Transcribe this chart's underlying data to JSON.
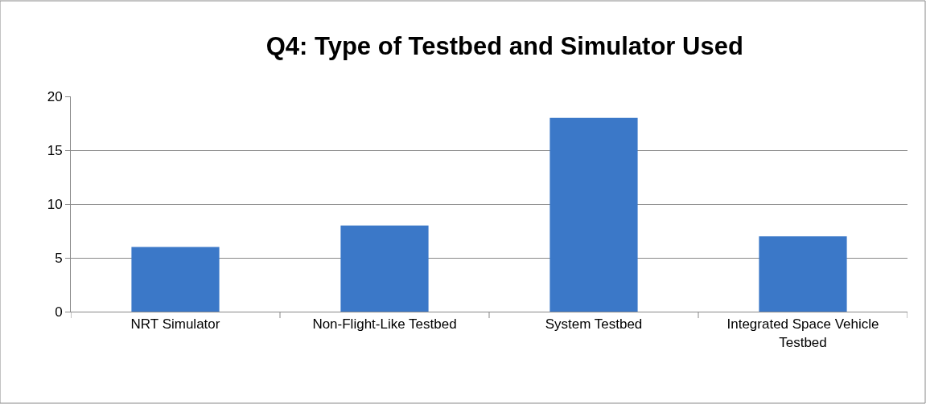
{
  "chart_data": {
    "type": "bar",
    "title": "Q4: Type of Testbed and Simulator Used",
    "categories": [
      "NRT Simulator",
      "Non-Flight-Like Testbed",
      "System Testbed",
      "Integrated Space Vehicle Testbed"
    ],
    "values": [
      6,
      8,
      18,
      7
    ],
    "color": "#3b78c8",
    "ylim": [
      0,
      20
    ],
    "yticks": [
      0,
      5,
      10,
      15,
      20
    ],
    "grid": "y",
    "legend": false
  }
}
